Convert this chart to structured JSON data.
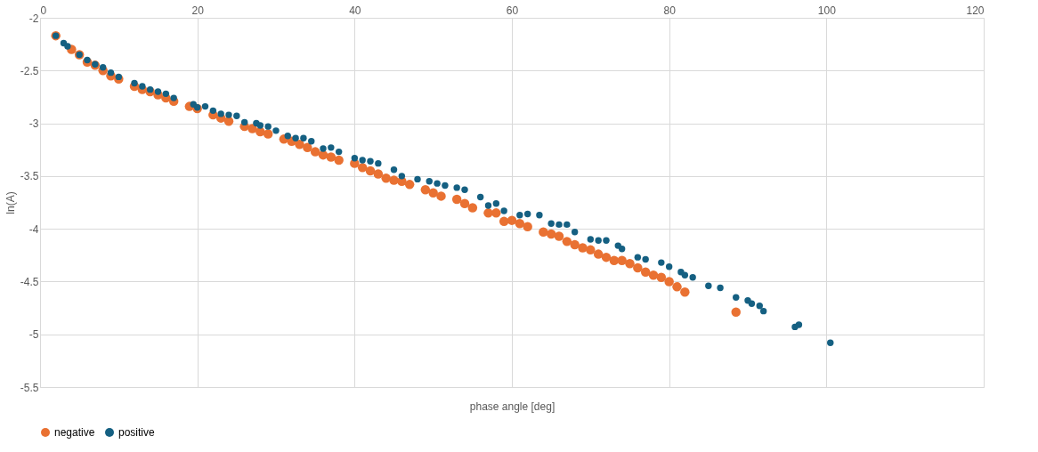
{
  "chart_data": {
    "type": "scatter",
    "xlabel": "phase angle [deg]",
    "ylabel": "ln(A)",
    "xlim": [
      0,
      120
    ],
    "xticks": [
      0,
      20,
      40,
      60,
      80,
      100,
      120
    ],
    "ylim": [
      -5.5,
      -2
    ],
    "yticks": [
      -5.5,
      -5,
      -4.5,
      -4,
      -3.5,
      -3,
      -2.5,
      -2
    ],
    "grid": true,
    "legend": "bottom",
    "marker": "circle",
    "series": [
      {
        "name": "negative",
        "color": "#e97132",
        "x": [
          2,
          4,
          5,
          6,
          7,
          8,
          9,
          10,
          12,
          13,
          14,
          15,
          16,
          17,
          19,
          20,
          22,
          23,
          24,
          26,
          27,
          28,
          29,
          31,
          32,
          33,
          34,
          35,
          36,
          37,
          38,
          40,
          41,
          42,
          43,
          44,
          45,
          46,
          47,
          49,
          50,
          51,
          53,
          54,
          55,
          57,
          58,
          59,
          60,
          61,
          62,
          64,
          65,
          66,
          67,
          68,
          69,
          70,
          71,
          72,
          73,
          74,
          75,
          76,
          77,
          78,
          79,
          80,
          81,
          82,
          88.5
        ],
        "values": [
          -2.17,
          -2.3,
          -2.35,
          -2.42,
          -2.45,
          -2.5,
          -2.55,
          -2.58,
          -2.65,
          -2.68,
          -2.7,
          -2.73,
          -2.76,
          -2.79,
          -2.84,
          -2.86,
          -2.92,
          -2.95,
          -2.98,
          -3.03,
          -3.05,
          -3.08,
          -3.1,
          -3.15,
          -3.17,
          -3.2,
          -3.23,
          -3.27,
          -3.3,
          -3.32,
          -3.35,
          -3.38,
          -3.42,
          -3.45,
          -3.48,
          -3.52,
          -3.54,
          -3.55,
          -3.58,
          -3.63,
          -3.66,
          -3.69,
          -3.72,
          -3.76,
          -3.8,
          -3.85,
          -3.85,
          -3.93,
          -3.92,
          -3.95,
          -3.98,
          -4.03,
          -4.05,
          -4.07,
          -4.12,
          -4.15,
          -4.18,
          -4.2,
          -4.24,
          -4.27,
          -4.3,
          -4.3,
          -4.33,
          -4.37,
          -4.41,
          -4.44,
          -4.46,
          -4.5,
          -4.55,
          -4.6,
          -4.79
        ]
      },
      {
        "name": "positive",
        "color": "#156082",
        "x": [
          2,
          3,
          3.5,
          5,
          6,
          7,
          8,
          9,
          10,
          12,
          13,
          14,
          15,
          16,
          17,
          19.5,
          20,
          21,
          22,
          23,
          24,
          25,
          26,
          27.5,
          28,
          29,
          30,
          31.5,
          32.5,
          33.5,
          34.5,
          36,
          37,
          38,
          40,
          41,
          42,
          43,
          45,
          46,
          48,
          49.5,
          50.5,
          51.5,
          53,
          54,
          56,
          57,
          58,
          59,
          61,
          62,
          63.5,
          65,
          66,
          67,
          68,
          70,
          71,
          72,
          73.5,
          74,
          76,
          77,
          79,
          80,
          81.5,
          82,
          83,
          85,
          86.5,
          88.5,
          90,
          90.5,
          91.5,
          92,
          96,
          96.5,
          100.5
        ],
        "values": [
          -2.17,
          -2.24,
          -2.27,
          -2.35,
          -2.4,
          -2.44,
          -2.47,
          -2.52,
          -2.56,
          -2.62,
          -2.65,
          -2.68,
          -2.7,
          -2.72,
          -2.76,
          -2.82,
          -2.85,
          -2.84,
          -2.88,
          -2.91,
          -2.92,
          -2.93,
          -2.99,
          -3.0,
          -3.02,
          -3.03,
          -3.07,
          -3.12,
          -3.14,
          -3.14,
          -3.17,
          -3.24,
          -3.23,
          -3.27,
          -3.33,
          -3.35,
          -3.36,
          -3.38,
          -3.44,
          -3.5,
          -3.53,
          -3.55,
          -3.57,
          -3.59,
          -3.61,
          -3.63,
          -3.7,
          -3.78,
          -3.76,
          -3.83,
          -3.87,
          -3.86,
          -3.87,
          -3.95,
          -3.96,
          -3.96,
          -4.03,
          -4.1,
          -4.11,
          -4.11,
          -4.16,
          -4.19,
          -4.27,
          -4.29,
          -4.32,
          -4.36,
          -4.41,
          -4.44,
          -4.46,
          -4.54,
          -4.56,
          -4.65,
          -4.68,
          -4.71,
          -4.73,
          -4.78,
          -4.93,
          -4.91,
          -5.08
        ]
      }
    ]
  }
}
